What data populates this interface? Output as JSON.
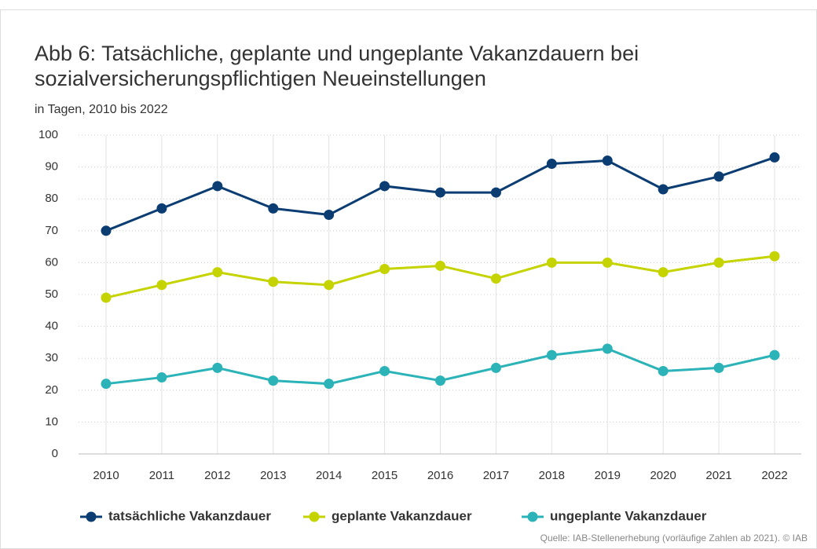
{
  "chart_data": {
    "type": "line",
    "title": "Abb 6: Tatsächliche, geplante und ungeplante Vakanzdauern bei sozialversicherungspflichtigen Neueinstellungen",
    "subtitle": "in Tagen, 2010 bis 2022",
    "source": "Quelle: IAB-Stellenerhebung (vorläufige Zahlen ab 2021). © IAB",
    "categories": [
      "2010",
      "2011",
      "2012",
      "2013",
      "2014",
      "2015",
      "2016",
      "2017",
      "2018",
      "2019",
      "2020",
      "2021",
      "2022"
    ],
    "series": [
      {
        "name": "tatsächliche Vakanzdauer",
        "color": "#0b3d73",
        "values": [
          70,
          77,
          84,
          77,
          75,
          84,
          82,
          82,
          91,
          92,
          83,
          87,
          93
        ]
      },
      {
        "name": "geplante Vakanzdauer",
        "color": "#c5d300",
        "values": [
          49,
          53,
          57,
          54,
          53,
          58,
          59,
          55,
          60,
          60,
          57,
          60,
          62
        ]
      },
      {
        "name": "ungeplante Vakanzdauer",
        "color": "#2bb3b8",
        "values": [
          22,
          24,
          27,
          23,
          22,
          26,
          23,
          27,
          31,
          33,
          26,
          27,
          31
        ]
      }
    ],
    "ylim": [
      0,
      100
    ],
    "yticks": [
      0,
      10,
      20,
      30,
      40,
      50,
      60,
      70,
      80,
      90,
      100
    ],
    "grid": true
  }
}
